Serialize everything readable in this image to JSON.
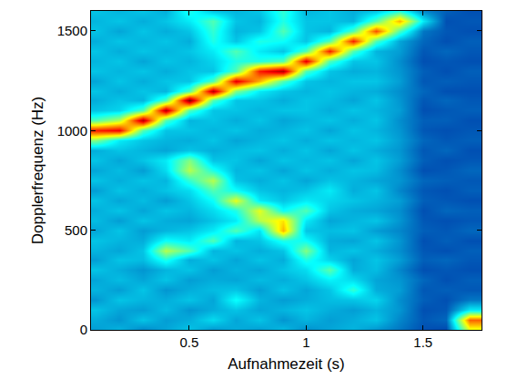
{
  "chart_data": {
    "type": "heatmap",
    "x_label": "Aufnahmezeit (s)",
    "y_label": "Dopplerfrequenz (Hz)",
    "x": [
      0.1,
      0.2,
      0.3,
      0.4,
      0.5,
      0.6,
      0.7,
      0.8,
      0.9,
      1.0,
      1.1,
      1.2,
      1.3,
      1.4,
      1.5,
      1.6,
      1.7
    ],
    "y": [
      0,
      50,
      100,
      150,
      200,
      250,
      300,
      350,
      400,
      450,
      500,
      550,
      600,
      650,
      700,
      750,
      800,
      850,
      900,
      950,
      1000,
      1050,
      1100,
      1150,
      1200,
      1250,
      1300,
      1350,
      1400,
      1450,
      1500,
      1550,
      1600
    ],
    "z": [
      [
        0.25,
        0.28,
        0.22,
        0.26,
        0.3,
        0.24,
        0.27,
        0.25,
        0.29,
        0.23,
        0.26,
        0.28,
        0.24,
        0.2,
        0.15,
        0.14,
        0.6
      ],
      [
        0.27,
        0.24,
        0.3,
        0.25,
        0.27,
        0.33,
        0.26,
        0.3,
        0.24,
        0.28,
        0.25,
        0.27,
        0.3,
        0.22,
        0.16,
        0.18,
        0.78
      ],
      [
        0.3,
        0.26,
        0.25,
        0.29,
        0.24,
        0.27,
        0.3,
        0.26,
        0.28,
        0.3,
        0.27,
        0.25,
        0.28,
        0.24,
        0.15,
        0.16,
        0.35
      ],
      [
        0.24,
        0.3,
        0.28,
        0.27,
        0.3,
        0.26,
        0.38,
        0.28,
        0.25,
        0.27,
        0.29,
        0.3,
        0.32,
        0.23,
        0.17,
        0.15,
        0.2
      ],
      [
        0.28,
        0.25,
        0.3,
        0.24,
        0.27,
        0.29,
        0.3,
        0.25,
        0.3,
        0.26,
        0.3,
        0.42,
        0.27,
        0.25,
        0.16,
        0.17,
        0.16
      ],
      [
        0.26,
        0.29,
        0.26,
        0.3,
        0.25,
        0.27,
        0.26,
        0.29,
        0.27,
        0.3,
        0.36,
        0.33,
        0.26,
        0.24,
        0.18,
        0.15,
        0.17
      ],
      [
        0.3,
        0.27,
        0.24,
        0.28,
        0.3,
        0.25,
        0.28,
        0.26,
        0.3,
        0.33,
        0.46,
        0.27,
        0.29,
        0.22,
        0.15,
        0.16,
        0.15
      ],
      [
        0.25,
        0.3,
        0.29,
        0.4,
        0.27,
        0.3,
        0.26,
        0.3,
        0.27,
        0.4,
        0.32,
        0.26,
        0.3,
        0.25,
        0.17,
        0.18,
        0.16
      ],
      [
        0.28,
        0.26,
        0.3,
        0.55,
        0.45,
        0.28,
        0.3,
        0.27,
        0.3,
        0.5,
        0.28,
        0.3,
        0.27,
        0.23,
        0.16,
        0.15,
        0.17
      ],
      [
        0.3,
        0.28,
        0.27,
        0.38,
        0.35,
        0.45,
        0.28,
        0.3,
        0.4,
        0.38,
        0.27,
        0.26,
        0.3,
        0.24,
        0.15,
        0.17,
        0.15
      ],
      [
        0.26,
        0.3,
        0.25,
        0.28,
        0.3,
        0.35,
        0.45,
        0.34,
        0.7,
        0.3,
        0.29,
        0.3,
        0.25,
        0.22,
        0.17,
        0.16,
        0.18
      ],
      [
        0.29,
        0.25,
        0.3,
        0.27,
        0.26,
        0.3,
        0.35,
        0.55,
        0.65,
        0.35,
        0.26,
        0.28,
        0.3,
        0.24,
        0.16,
        0.15,
        0.16
      ],
      [
        0.27,
        0.3,
        0.26,
        0.3,
        0.28,
        0.33,
        0.4,
        0.6,
        0.38,
        0.45,
        0.3,
        0.27,
        0.26,
        0.23,
        0.15,
        0.18,
        0.17
      ],
      [
        0.3,
        0.26,
        0.29,
        0.25,
        0.3,
        0.38,
        0.6,
        0.35,
        0.3,
        0.35,
        0.32,
        0.3,
        0.28,
        0.25,
        0.17,
        0.16,
        0.15
      ],
      [
        0.25,
        0.3,
        0.27,
        0.3,
        0.33,
        0.45,
        0.38,
        0.3,
        0.28,
        0.3,
        0.35,
        0.27,
        0.3,
        0.22,
        0.16,
        0.15,
        0.17
      ],
      [
        0.3,
        0.27,
        0.3,
        0.28,
        0.42,
        0.55,
        0.3,
        0.27,
        0.3,
        0.26,
        0.3,
        0.28,
        0.26,
        0.24,
        0.18,
        0.17,
        0.16
      ],
      [
        0.26,
        0.29,
        0.25,
        0.33,
        0.55,
        0.4,
        0.28,
        0.3,
        0.26,
        0.3,
        0.27,
        0.3,
        0.29,
        0.23,
        0.15,
        0.16,
        0.18
      ],
      [
        0.3,
        0.26,
        0.3,
        0.35,
        0.5,
        0.3,
        0.3,
        0.26,
        0.3,
        0.28,
        0.3,
        0.26,
        0.3,
        0.25,
        0.17,
        0.15,
        0.16
      ],
      [
        0.27,
        0.3,
        0.28,
        0.26,
        0.3,
        0.27,
        0.29,
        0.3,
        0.27,
        0.3,
        0.26,
        0.3,
        0.27,
        0.24,
        0.16,
        0.18,
        0.15
      ],
      [
        0.5,
        0.35,
        0.3,
        0.28,
        0.27,
        0.3,
        0.26,
        0.28,
        0.3,
        0.27,
        0.3,
        0.28,
        0.3,
        0.25,
        0.18,
        0.16,
        0.17
      ],
      [
        0.85,
        0.88,
        0.45,
        0.3,
        0.3,
        0.28,
        0.3,
        0.27,
        0.28,
        0.3,
        0.26,
        0.3,
        0.28,
        0.24,
        0.16,
        0.15,
        0.16
      ],
      [
        0.45,
        0.55,
        0.95,
        0.45,
        0.28,
        0.3,
        0.27,
        0.3,
        0.26,
        0.28,
        0.3,
        0.27,
        0.3,
        0.23,
        0.17,
        0.17,
        0.15
      ],
      [
        0.3,
        0.32,
        0.45,
        0.95,
        0.45,
        0.3,
        0.3,
        0.28,
        0.3,
        0.3,
        0.27,
        0.3,
        0.28,
        0.25,
        0.15,
        0.16,
        0.17
      ],
      [
        0.27,
        0.3,
        0.28,
        0.45,
        1.0,
        0.45,
        0.3,
        0.3,
        0.27,
        0.3,
        0.29,
        0.26,
        0.3,
        0.24,
        0.16,
        0.18,
        0.16
      ],
      [
        0.3,
        0.27,
        0.3,
        0.28,
        0.45,
        0.95,
        0.5,
        0.35,
        0.3,
        0.28,
        0.3,
        0.28,
        0.27,
        0.23,
        0.18,
        0.15,
        0.15
      ],
      [
        0.26,
        0.3,
        0.27,
        0.3,
        0.3,
        0.45,
        0.9,
        0.7,
        0.45,
        0.3,
        0.28,
        0.3,
        0.3,
        0.25,
        0.16,
        0.17,
        0.16
      ],
      [
        0.3,
        0.28,
        0.3,
        0.27,
        0.3,
        0.3,
        0.45,
        0.85,
        0.95,
        0.45,
        0.3,
        0.27,
        0.28,
        0.24,
        0.17,
        0.15,
        0.17
      ],
      [
        0.28,
        0.3,
        0.26,
        0.3,
        0.28,
        0.32,
        0.4,
        0.4,
        0.45,
        0.9,
        0.45,
        0.3,
        0.3,
        0.23,
        0.15,
        0.16,
        0.15
      ],
      [
        0.3,
        0.27,
        0.3,
        0.28,
        0.3,
        0.35,
        0.45,
        0.35,
        0.3,
        0.45,
        0.85,
        0.45,
        0.28,
        0.25,
        0.16,
        0.18,
        0.16
      ],
      [
        0.27,
        0.3,
        0.28,
        0.3,
        0.27,
        0.4,
        0.3,
        0.4,
        0.38,
        0.3,
        0.45,
        0.85,
        0.45,
        0.26,
        0.18,
        0.15,
        0.17
      ],
      [
        0.3,
        0.26,
        0.3,
        0.27,
        0.3,
        0.42,
        0.28,
        0.3,
        0.45,
        0.3,
        0.28,
        0.45,
        0.8,
        0.45,
        0.2,
        0.16,
        0.15
      ],
      [
        0.28,
        0.3,
        0.27,
        0.3,
        0.35,
        0.45,
        0.3,
        0.28,
        0.4,
        0.3,
        0.3,
        0.28,
        0.45,
        0.7,
        0.35,
        0.15,
        0.16
      ],
      [
        0.3,
        0.28,
        0.3,
        0.27,
        0.4,
        0.3,
        0.28,
        0.3,
        0.42,
        0.28,
        0.3,
        0.27,
        0.3,
        0.4,
        0.22,
        0.17,
        0.15
      ]
    ],
    "zlim": [
      0,
      1
    ],
    "xlim": [
      0.08,
      1.75
    ],
    "ylim": [
      0,
      1600
    ],
    "xticks": [
      0.5,
      1,
      1.5
    ],
    "yticks": [
      0,
      500,
      1000,
      1500
    ],
    "grid": false
  }
}
